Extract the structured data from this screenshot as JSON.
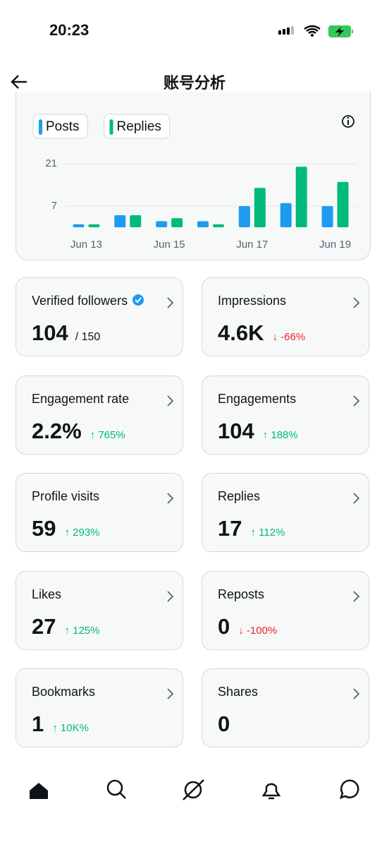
{
  "status_bar": {
    "time": "20:23"
  },
  "header": {
    "title": "账号分析"
  },
  "chart_data": {
    "type": "bar",
    "categories": [
      "Jun 13",
      null,
      "Jun 15",
      null,
      "Jun 17",
      null,
      "Jun 19"
    ],
    "series": [
      {
        "name": "Posts",
        "color": "#1d9bf0",
        "values": [
          1,
          4,
          2,
          2,
          7,
          8,
          7
        ]
      },
      {
        "name": "Replies",
        "color": "#00ba7c",
        "values": [
          1,
          4,
          3,
          1,
          13,
          20,
          15
        ]
      }
    ],
    "ylim": [
      0,
      21
    ],
    "yticks": [
      7,
      21
    ],
    "grid": true
  },
  "cards": [
    {
      "title": "Verified followers",
      "value": "104",
      "extra": "/ 150",
      "verified": true
    },
    {
      "title": "Impressions",
      "value": "4.6K",
      "change": "↓ -66%",
      "trend": "down"
    },
    {
      "title": "Engagement rate",
      "value": "2.2%",
      "change": "↑ 765%",
      "trend": "up"
    },
    {
      "title": "Engagements",
      "value": "104",
      "change": "↑ 188%",
      "trend": "up"
    },
    {
      "title": "Profile visits",
      "value": "59",
      "change": "↑ 293%",
      "trend": "up"
    },
    {
      "title": "Replies",
      "value": "17",
      "change": "↑ 112%",
      "trend": "up"
    },
    {
      "title": "Likes",
      "value": "27",
      "change": "↑ 125%",
      "trend": "up"
    },
    {
      "title": "Reposts",
      "value": "0",
      "change": "↓ -100%",
      "trend": "down"
    },
    {
      "title": "Bookmarks",
      "value": "1",
      "change": "↑ 10K%",
      "trend": "up"
    },
    {
      "title": "Shares",
      "value": "0"
    }
  ]
}
